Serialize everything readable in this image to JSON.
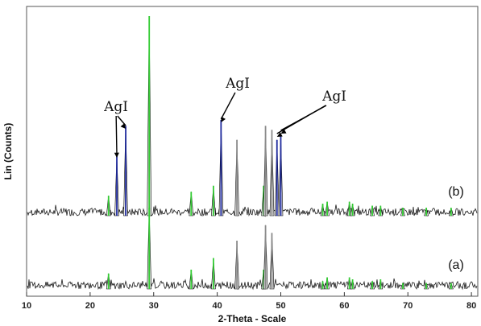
{
  "chart_data": {
    "type": "line",
    "xlabel": "2-Theta - Scale",
    "ylabel": "Lin (Counts)",
    "xlim": [
      10,
      81
    ],
    "x_ticks": [
      10,
      20,
      30,
      40,
      50,
      60,
      70,
      80
    ],
    "grid": false,
    "legend": "none",
    "colors": {
      "noise": "#1a1a1a",
      "reference_green": "#33cc33",
      "agi_blue": "#1f2b9e",
      "peak_gray": "#8a8a8a"
    },
    "series": [
      {
        "name": "(b)",
        "baseline_frac": 0.85,
        "peaks": [
          {
            "x": 22.9,
            "h": 0.1,
            "color": "green"
          },
          {
            "x": 24.2,
            "h": 0.3,
            "color": "blue"
          },
          {
            "x": 25.6,
            "h": 0.45,
            "color": "blue"
          },
          {
            "x": 29.3,
            "h": 1.0,
            "color": "green"
          },
          {
            "x": 35.9,
            "h": 0.12,
            "color": "green"
          },
          {
            "x": 39.4,
            "h": 0.15,
            "color": "green"
          },
          {
            "x": 40.6,
            "h": 0.48,
            "color": "blue"
          },
          {
            "x": 43.1,
            "h": 0.38,
            "color": "gray"
          },
          {
            "x": 47.3,
            "h": 0.15,
            "color": "green"
          },
          {
            "x": 47.6,
            "h": 0.45,
            "color": "gray"
          },
          {
            "x": 48.6,
            "h": 0.43,
            "color": "gray"
          },
          {
            "x": 49.4,
            "h": 0.38,
            "color": "blue"
          },
          {
            "x": 50.0,
            "h": 0.4,
            "color": "blue"
          },
          {
            "x": 56.6,
            "h": 0.06,
            "color": "green"
          },
          {
            "x": 57.3,
            "h": 0.07,
            "color": "green"
          },
          {
            "x": 60.8,
            "h": 0.07,
            "color": "green"
          },
          {
            "x": 61.3,
            "h": 0.06,
            "color": "green"
          },
          {
            "x": 64.4,
            "h": 0.05,
            "color": "green"
          },
          {
            "x": 65.7,
            "h": 0.05,
            "color": "green"
          },
          {
            "x": 69.2,
            "h": 0.04,
            "color": "green"
          },
          {
            "x": 72.9,
            "h": 0.04,
            "color": "green"
          },
          {
            "x": 76.8,
            "h": 0.04,
            "color": "green"
          }
        ]
      },
      {
        "name": "(a)",
        "baseline_frac": 0.0,
        "peaks": [
          {
            "x": 22.9,
            "h": 0.08,
            "color": "green"
          },
          {
            "x": 29.3,
            "h": 0.42,
            "color": "green"
          },
          {
            "x": 35.9,
            "h": 0.1,
            "color": "green"
          },
          {
            "x": 39.4,
            "h": 0.16,
            "color": "green"
          },
          {
            "x": 43.1,
            "h": 0.25,
            "color": "gray"
          },
          {
            "x": 47.3,
            "h": 0.1,
            "color": "green"
          },
          {
            "x": 47.6,
            "h": 0.33,
            "color": "gray"
          },
          {
            "x": 48.6,
            "h": 0.29,
            "color": "gray"
          },
          {
            "x": 56.6,
            "h": 0.04,
            "color": "green"
          },
          {
            "x": 57.3,
            "h": 0.06,
            "color": "green"
          },
          {
            "x": 60.8,
            "h": 0.06,
            "color": "green"
          },
          {
            "x": 61.3,
            "h": 0.05,
            "color": "green"
          },
          {
            "x": 64.4,
            "h": 0.04,
            "color": "green"
          },
          {
            "x": 65.7,
            "h": 0.05,
            "color": "green"
          },
          {
            "x": 69.2,
            "h": 0.03,
            "color": "green"
          },
          {
            "x": 72.9,
            "h": 0.03,
            "color": "green"
          },
          {
            "x": 76.8,
            "h": 0.03,
            "color": "green"
          }
        ]
      }
    ],
    "annotations": [
      {
        "text": "AgI",
        "targets": [
          24.2,
          25.6
        ]
      },
      {
        "text": "AgI",
        "targets": [
          40.6
        ]
      },
      {
        "text": "AgI",
        "targets": [
          49.4,
          50.0
        ]
      }
    ]
  }
}
